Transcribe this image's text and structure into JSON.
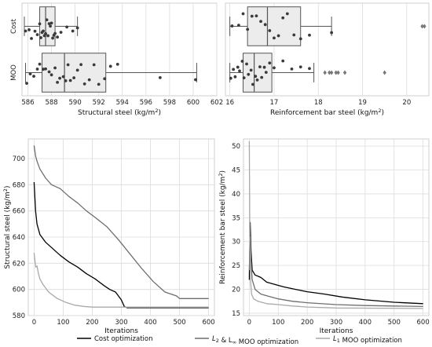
{
  "chart_data": [
    {
      "id": "structural_box",
      "type": "box",
      "xlabel": "Structural steel (kg/m",
      "xlabel_sup": "2",
      "xlabel_end": ")",
      "xlim": [
        585.5,
        602
      ],
      "xticks": [
        "586",
        "588",
        "590",
        "592",
        "594",
        "596",
        "598",
        "600",
        "602"
      ],
      "grid": true,
      "groups": [
        {
          "name": "Cost",
          "box": {
            "whisker_low": 585.7,
            "q1": 587.0,
            "median": 587.5,
            "q3": 588.3,
            "whisker_high": 590.2
          },
          "points": [
            585.8,
            586.1,
            586.3,
            586.6,
            586.8,
            587.0,
            587.1,
            587.2,
            587.3,
            587.4,
            587.5,
            587.6,
            587.7,
            587.8,
            587.9,
            588.0,
            588.1,
            588.2,
            588.3,
            588.5,
            588.8,
            589.3,
            589.8,
            590.2
          ],
          "outliers": []
        },
        {
          "name": "MOO",
          "box": {
            "whisker_low": 585.8,
            "q1": 587.2,
            "median": 589.1,
            "q3": 592.6,
            "whisker_high": 600.3
          },
          "points": [
            585.9,
            586.2,
            586.5,
            586.8,
            587.0,
            587.3,
            587.5,
            587.8,
            588.0,
            588.3,
            588.5,
            588.7,
            589.0,
            589.2,
            589.4,
            589.6,
            589.9,
            590.2,
            590.5,
            590.8,
            591.2,
            591.6,
            592.0,
            592.5,
            593.0,
            593.6,
            597.2,
            600.2
          ],
          "outliers": []
        }
      ]
    },
    {
      "id": "rebar_box",
      "type": "box",
      "xlabel": "Reinforcement bar steel (kg/m",
      "xlabel_sup": "2",
      "xlabel_end": ")",
      "xlim": [
        15.9,
        20.5
      ],
      "xticks": [
        "16",
        "17",
        "18",
        "19",
        "20"
      ],
      "grid": true,
      "groups": [
        {
          "name": "Cost",
          "box": {
            "whisker_low": 16.0,
            "q1": 16.4,
            "median": 16.85,
            "q3": 17.6,
            "whisker_high": 18.3
          },
          "points": [
            16.05,
            16.2,
            16.3,
            16.4,
            16.5,
            16.6,
            16.7,
            16.8,
            16.9,
            17.0,
            17.1,
            17.2,
            17.3,
            17.45,
            17.6,
            17.8,
            18.3
          ],
          "outliers": [
            20.35,
            20.4
          ]
        },
        {
          "name": "MOO",
          "box": {
            "whisker_low": 16.0,
            "q1": 16.3,
            "median": 16.55,
            "q3": 16.95,
            "whisker_high": 17.9
          },
          "points": [
            16.02,
            16.08,
            16.12,
            16.18,
            16.22,
            16.28,
            16.32,
            16.38,
            16.42,
            16.48,
            16.52,
            16.58,
            16.62,
            16.68,
            16.72,
            16.78,
            16.82,
            16.9,
            17.0,
            17.2,
            17.4,
            17.6,
            17.8
          ],
          "outliers": [
            18.15,
            18.25,
            18.3,
            18.4,
            18.45,
            18.6,
            19.5
          ]
        }
      ]
    },
    {
      "id": "structural_line",
      "type": "line",
      "xlabel": "Iterations",
      "ylabel": "Structural steel (kg/m",
      "ylabel_sup": "2",
      "ylabel_end": ")",
      "xlim": [
        -20,
        620
      ],
      "ylim": [
        580,
        715
      ],
      "xticks": [
        "0",
        "100",
        "200",
        "300",
        "400",
        "500",
        "600"
      ],
      "yticks": [
        "580",
        "600",
        "620",
        "640",
        "660",
        "680",
        "700"
      ],
      "grid": true,
      "series": [
        {
          "name": "Cost optimization",
          "color": "#000000",
          "x": [
            0,
            5,
            10,
            20,
            40,
            60,
            90,
            120,
            150,
            180,
            210,
            240,
            260,
            280,
            300,
            310,
            320,
            400,
            500,
            600
          ],
          "y": [
            682,
            660,
            650,
            642,
            636,
            632,
            626,
            621,
            617,
            612,
            608,
            603,
            600,
            598,
            592,
            587,
            586,
            586,
            586,
            586
          ]
        },
        {
          "name": "L2 & L∞ MOO optimization",
          "color": "#6e6e6e",
          "x": [
            0,
            5,
            10,
            20,
            40,
            60,
            90,
            120,
            150,
            180,
            210,
            250,
            290,
            330,
            370,
            410,
            450,
            490,
            500,
            600
          ],
          "y": [
            710,
            702,
            698,
            692,
            685,
            680,
            677,
            671,
            666,
            660,
            655,
            648,
            638,
            627,
            616,
            606,
            598,
            595,
            593,
            593
          ]
        },
        {
          "name": "L1 MOO optimization",
          "color": "#a9a9a9",
          "x": [
            0,
            3,
            6,
            10,
            15,
            20,
            30,
            50,
            80,
            110,
            140,
            170,
            200,
            600
          ],
          "y": [
            628,
            622,
            617,
            618,
            612,
            608,
            604,
            598,
            593,
            590,
            588,
            587,
            586.5,
            586.5
          ]
        }
      ]
    },
    {
      "id": "rebar_line",
      "type": "line",
      "xlabel": "Iterations",
      "ylabel": "Reinforcement bar steel (kg/m",
      "ylabel_sup": "2",
      "ylabel_end": ")",
      "xlim": [
        -20,
        620
      ],
      "ylim": [
        14.5,
        51.5
      ],
      "xticks": [
        "0",
        "100",
        "200",
        "300",
        "400",
        "500",
        "600"
      ],
      "yticks": [
        "15",
        "20",
        "25",
        "30",
        "35",
        "40",
        "45",
        "50"
      ],
      "grid": true,
      "series": [
        {
          "name": "Cost optimization",
          "color": "#000000",
          "x": [
            0,
            3,
            6,
            10,
            20,
            40,
            60,
            90,
            120,
            160,
            200,
            260,
            320,
            400,
            500,
            600
          ],
          "y": [
            22,
            34,
            28,
            24,
            23,
            22.5,
            21.5,
            21,
            20.5,
            20,
            19.5,
            19,
            18.4,
            17.8,
            17.3,
            17
          ]
        },
        {
          "name": "L2 & L∞ MOO optimization",
          "color": "#6e6e6e",
          "x": [
            0,
            3,
            6,
            10,
            20,
            40,
            70,
            100,
            150,
            200,
            300,
            400,
            500,
            600
          ],
          "y": [
            24,
            31,
            26,
            22,
            20,
            19,
            18.5,
            18,
            17.5,
            17.2,
            16.8,
            16.6,
            16.5,
            16.4
          ]
        },
        {
          "name": "L1 MOO optimization",
          "color": "#a9a9a9",
          "x": [
            0,
            2,
            4,
            8,
            15,
            30,
            60,
            100,
            150,
            200,
            300,
            600
          ],
          "y": [
            51,
            30,
            22,
            19,
            18,
            17.5,
            17,
            16.8,
            16.5,
            16.3,
            16.1,
            16
          ]
        }
      ]
    }
  ],
  "legend": {
    "items": [
      {
        "label": "Cost optimization",
        "color": "#000000"
      },
      {
        "label": "L",
        "sub": "2",
        "label_mid": " & L",
        "sub2": "∞",
        "label_end": " MOO optimization",
        "color": "#6e6e6e"
      },
      {
        "label": "L",
        "sub": "1",
        "label_end": " MOO optimization",
        "color": "#a9a9a9"
      }
    ]
  }
}
